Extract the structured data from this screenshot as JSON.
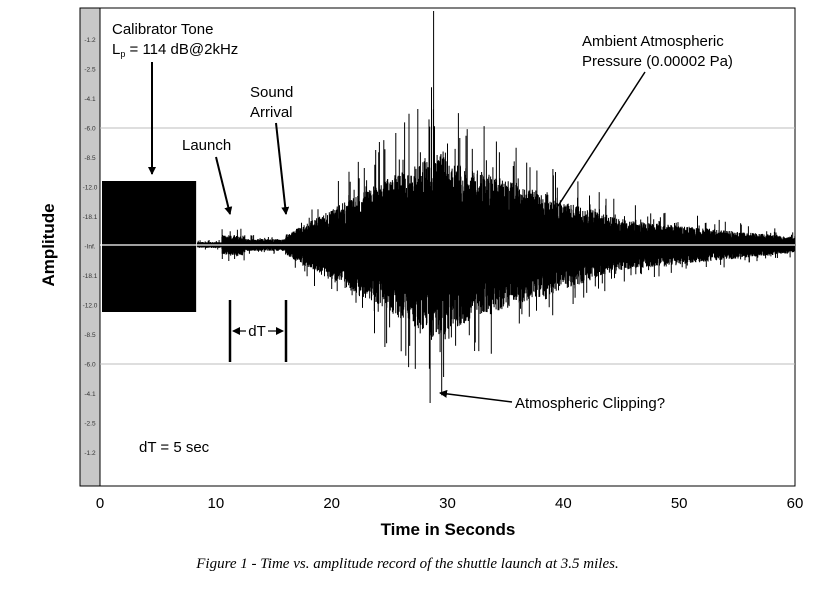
{
  "chart_data": {
    "type": "line",
    "xlabel": "Time in Seconds",
    "ylabel": "Amplitude",
    "xlim": [
      0,
      60
    ],
    "x_ticks": [
      0,
      10,
      20,
      30,
      40,
      50,
      60
    ],
    "y_tick_labels": [
      "-1.2",
      "-2.5",
      "-4.1",
      "-6.0",
      "-8.5",
      "-12.0",
      "-18.1",
      "-Inf.",
      "-18.1",
      "-12.0",
      "-8.5",
      "-6.0",
      "-4.1",
      "-2.5",
      "-1.2"
    ],
    "grid": "horizontal lines at -6.0 levels",
    "series": [
      {
        "values_description": "acoustic amplitude waveform"
      }
    ],
    "calibrator_tone": {
      "x_start": 0,
      "x_end": 8.3,
      "level": "-12.0"
    },
    "annotations": {
      "calibrator_line1": "Calibrator Tone",
      "calibrator_line2": "L",
      "calibrator_sub": "p",
      "calibrator_line2_rest": " = 114 dB@2kHz",
      "launch": "Launch",
      "sound_line1": "Sound",
      "sound_line2": "Arrival",
      "ambient_line1": "Ambient Atmospheric",
      "ambient_line2": "Pressure (0.00002 Pa)",
      "clipping": "Atmospheric Clipping?",
      "dt_arrow": "dT",
      "dt_value": "dT = 5 sec"
    },
    "events": {
      "launch_x": 11,
      "sound_arrival_x": 16,
      "clipping_x": 28.5
    }
  },
  "caption": "Figure 1 - Time vs. amplitude record of the shuttle launch at 3.5 miles."
}
